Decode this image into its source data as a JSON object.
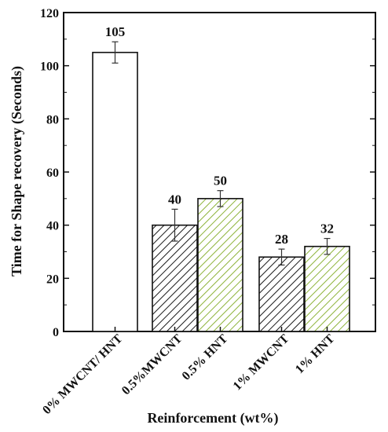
{
  "chart_data": {
    "type": "bar",
    "title": "",
    "xlabel": "Reinforcement (wt%)",
    "ylabel": "Time for Shape recovery  (Seconds)",
    "ylim": [
      0,
      120
    ],
    "yticks": [
      0,
      20,
      40,
      60,
      80,
      100,
      120
    ],
    "grid": false,
    "legend": "none",
    "categories": [
      "0% MWCNT/ HNT",
      "0.5%MWCNT",
      "0.5% HNT",
      "1% MWCNT",
      "1% HNT"
    ],
    "values": [
      105,
      40,
      50,
      28,
      32
    ],
    "errors": [
      4,
      6,
      3,
      3,
      3
    ],
    "data_labels": [
      "105",
      "40",
      "50",
      "28",
      "32"
    ],
    "fills": [
      "plain",
      "black-hatch",
      "green-hatch",
      "black-hatch",
      "green-hatch"
    ],
    "colors": {
      "hatch_black": "#1a1a1a",
      "hatch_green": "#8db33a",
      "axis": "#111111",
      "bar_fill": "#ffffff"
    }
  }
}
